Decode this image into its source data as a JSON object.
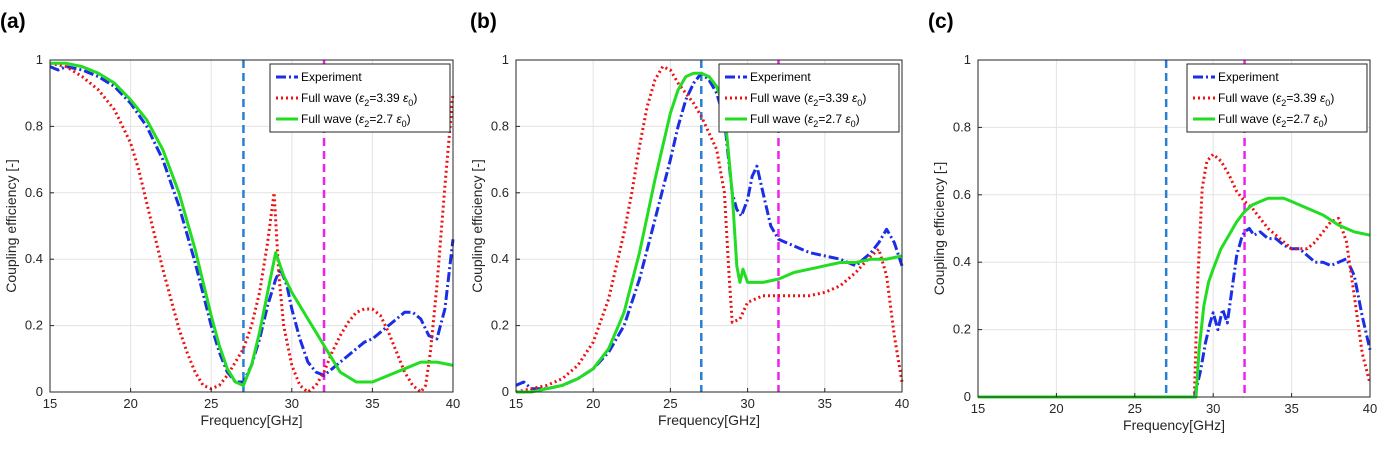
{
  "colors": {
    "experiment": "#1a2ee6",
    "full_wave_339": "#ee1111",
    "full_wave_27": "#22dd22",
    "marker_a": "#2a7fd4",
    "marker_b": "#ee22ee",
    "grid": "#e3e3e3"
  },
  "chart_data": [
    {
      "type": "line",
      "panel": "(a)",
      "xlabel": "Frequency[GHz]",
      "ylabel": "Coupling efficiency [-]",
      "xlim": [
        15,
        40
      ],
      "ylim": [
        0,
        1
      ],
      "xticks": [
        "15",
        "20",
        "25",
        "30",
        "35",
        "40"
      ],
      "yticks": [
        "0",
        "0.2",
        "0.4",
        "0.6",
        "0.8",
        "1"
      ],
      "grid": true,
      "legend_position": "top-right",
      "vlines": [
        27,
        32
      ],
      "legend": {
        "experiment": "Experiment",
        "full_wave_339": "Full wave (ε2=3.39 ε0)",
        "full_wave_27": "Full wave (ε2=2.7 ε0)"
      },
      "series": [
        {
          "name": "Experiment",
          "x": [
            15,
            15.5,
            16,
            17,
            18,
            19,
            20,
            21,
            22,
            23,
            24,
            25,
            25.5,
            26,
            26.5,
            27,
            27.5,
            28,
            28.5,
            29,
            29.3,
            29.7,
            30,
            30.5,
            31,
            31.5,
            32,
            32.5,
            33,
            33.5,
            34,
            34.5,
            35,
            35.5,
            36,
            36.5,
            37,
            37.5,
            38,
            38.5,
            39,
            39.5,
            40
          ],
          "y": [
            0.98,
            0.97,
            0.98,
            0.97,
            0.95,
            0.92,
            0.87,
            0.8,
            0.7,
            0.56,
            0.39,
            0.2,
            0.12,
            0.06,
            0.03,
            0.03,
            0.08,
            0.16,
            0.26,
            0.34,
            0.37,
            0.32,
            0.25,
            0.16,
            0.09,
            0.06,
            0.05,
            0.07,
            0.09,
            0.11,
            0.13,
            0.15,
            0.16,
            0.18,
            0.2,
            0.22,
            0.24,
            0.24,
            0.22,
            0.17,
            0.16,
            0.25,
            0.46
          ]
        },
        {
          "name": "Full wave (ε2=3.39 ε0)",
          "x": [
            15,
            16,
            17,
            18,
            19,
            20,
            20.5,
            21,
            21.5,
            22,
            22.5,
            23,
            23.5,
            24,
            24.5,
            25,
            25.5,
            26,
            26.5,
            27,
            27.5,
            28,
            28.5,
            28.9,
            29.2,
            29.5,
            30,
            30.5,
            31,
            31.5,
            32,
            32.5,
            33,
            33.5,
            34,
            34.5,
            35,
            35.5,
            36,
            36.5,
            37,
            37.5,
            38,
            38.3,
            38.6,
            39,
            39.5,
            40
          ],
          "y": [
            0.99,
            0.98,
            0.95,
            0.91,
            0.85,
            0.75,
            0.67,
            0.57,
            0.47,
            0.37,
            0.28,
            0.19,
            0.12,
            0.06,
            0.02,
            0.01,
            0.02,
            0.05,
            0.09,
            0.13,
            0.2,
            0.3,
            0.45,
            0.6,
            0.35,
            0.2,
            0.08,
            0.02,
            0.0,
            0.02,
            0.06,
            0.12,
            0.17,
            0.21,
            0.24,
            0.25,
            0.25,
            0.23,
            0.18,
            0.12,
            0.06,
            0.02,
            0.0,
            0.02,
            0.12,
            0.32,
            0.62,
            0.9
          ]
        },
        {
          "name": "Full wave (ε2=2.7 ε0)",
          "x": [
            15,
            16,
            17,
            18,
            19,
            20,
            21,
            22,
            23,
            24,
            25,
            25.5,
            26,
            26.5,
            27,
            27.5,
            28,
            28.5,
            29,
            29.5,
            30,
            30.5,
            31,
            31.5,
            32,
            32.5,
            33,
            34,
            35,
            36,
            37,
            38,
            39,
            40
          ],
          "y": [
            0.99,
            0.99,
            0.98,
            0.96,
            0.93,
            0.88,
            0.82,
            0.73,
            0.6,
            0.43,
            0.23,
            0.14,
            0.07,
            0.03,
            0.02,
            0.08,
            0.18,
            0.3,
            0.42,
            0.35,
            0.3,
            0.26,
            0.22,
            0.18,
            0.14,
            0.1,
            0.06,
            0.03,
            0.03,
            0.05,
            0.07,
            0.09,
            0.09,
            0.08
          ]
        }
      ]
    },
    {
      "type": "line",
      "panel": "(b)",
      "xlabel": "Frequency[GHz]",
      "ylabel": "Coupling efficiency [-]",
      "xlim": [
        15,
        40
      ],
      "ylim": [
        0,
        1
      ],
      "xticks": [
        "15",
        "20",
        "25",
        "30",
        "35",
        "40"
      ],
      "yticks": [
        "0",
        "0.2",
        "0.4",
        "0.6",
        "0.8",
        "1"
      ],
      "grid": true,
      "legend_position": "top-right",
      "vlines": [
        27,
        32
      ],
      "legend": {
        "experiment": "Experiment",
        "full_wave_339": "Full wave (ε2=3.39 ε0)",
        "full_wave_27": "Full wave (ε2=2.7 ε0)"
      },
      "series": [
        {
          "name": "Experiment",
          "x": [
            15,
            15.5,
            16,
            17,
            18,
            19,
            20,
            21,
            22,
            23,
            24,
            25,
            25.5,
            26,
            26.5,
            27,
            27.5,
            28,
            28.5,
            29,
            29.3,
            29.6,
            30,
            30.3,
            30.6,
            31,
            31.5,
            32,
            32.5,
            33,
            34,
            35,
            36,
            37,
            38,
            38.5,
            39,
            39.5,
            40
          ],
          "y": [
            0.02,
            0.03,
            0.01,
            0.01,
            0.02,
            0.04,
            0.07,
            0.12,
            0.2,
            0.34,
            0.52,
            0.7,
            0.8,
            0.88,
            0.93,
            0.96,
            0.94,
            0.9,
            0.82,
            0.6,
            0.55,
            0.53,
            0.58,
            0.65,
            0.68,
            0.6,
            0.5,
            0.46,
            0.45,
            0.44,
            0.42,
            0.41,
            0.4,
            0.38,
            0.42,
            0.45,
            0.49,
            0.45,
            0.38
          ]
        },
        {
          "name": "Full wave (ε2=3.39 ε0)",
          "x": [
            15,
            16,
            17,
            18,
            19,
            20,
            21,
            22,
            22.5,
            23,
            23.5,
            24,
            24.5,
            25,
            25.5,
            26,
            26.5,
            27,
            27.5,
            28,
            28.5,
            28.8,
            29,
            29.5,
            30,
            31,
            32,
            33,
            34,
            35,
            36,
            37,
            38,
            38.5,
            39,
            39.5,
            40
          ],
          "y": [
            0.0,
            0.01,
            0.02,
            0.04,
            0.08,
            0.15,
            0.28,
            0.48,
            0.6,
            0.74,
            0.86,
            0.94,
            0.98,
            0.97,
            0.93,
            0.9,
            0.87,
            0.83,
            0.78,
            0.73,
            0.6,
            0.35,
            0.21,
            0.22,
            0.27,
            0.29,
            0.29,
            0.29,
            0.29,
            0.3,
            0.32,
            0.36,
            0.41,
            0.43,
            0.35,
            0.17,
            0.03
          ]
        },
        {
          "name": "Full wave (ε2=2.7 ε0)",
          "x": [
            15,
            16,
            17,
            18,
            19,
            20,
            21,
            22,
            23,
            24,
            25,
            25.5,
            26,
            26.5,
            27,
            27.5,
            28,
            28.3,
            28.6,
            29,
            29.3,
            29.5,
            29.7,
            30,
            30.5,
            31,
            32,
            33,
            34,
            35,
            36,
            37,
            38,
            39,
            40
          ],
          "y": [
            0.0,
            0.0,
            0.01,
            0.02,
            0.04,
            0.07,
            0.13,
            0.24,
            0.42,
            0.64,
            0.84,
            0.91,
            0.95,
            0.96,
            0.96,
            0.95,
            0.92,
            0.88,
            0.8,
            0.6,
            0.38,
            0.33,
            0.37,
            0.33,
            0.33,
            0.33,
            0.34,
            0.36,
            0.37,
            0.38,
            0.39,
            0.39,
            0.4,
            0.4,
            0.41
          ]
        }
      ]
    },
    {
      "type": "line",
      "panel": "(c)",
      "xlabel": "Frequency[GHz]",
      "ylabel": "Coupling efficiency [-]",
      "xlim": [
        15,
        40
      ],
      "ylim": [
        0,
        1
      ],
      "xticks": [
        "15",
        "20",
        "25",
        "30",
        "35",
        "40"
      ],
      "yticks": [
        "0",
        "0.2",
        "0.4",
        "0.6",
        "0.8",
        "1"
      ],
      "grid": true,
      "legend_position": "top-right",
      "vlines": [
        27,
        32
      ],
      "legend": {
        "experiment": "Experiment",
        "full_wave_339": "Full wave (ε2=3.39 ε0)",
        "full_wave_27": "Full wave (ε2=2.7 ε0)"
      },
      "series": [
        {
          "name": "Experiment",
          "x": [
            15,
            20,
            25,
            28.8,
            29.2,
            29.5,
            29.8,
            30,
            30.3,
            30.6,
            30.9,
            31.2,
            31.5,
            31.8,
            32,
            32.3,
            32.6,
            33,
            33.5,
            34,
            34.5,
            35,
            35.5,
            36,
            36.5,
            37,
            37.5,
            38,
            38.5,
            39,
            39.5,
            40
          ],
          "y": [
            0.0,
            0.0,
            0.0,
            0.0,
            0.08,
            0.16,
            0.22,
            0.25,
            0.2,
            0.26,
            0.22,
            0.32,
            0.42,
            0.47,
            0.49,
            0.5,
            0.48,
            0.49,
            0.47,
            0.47,
            0.45,
            0.44,
            0.44,
            0.42,
            0.4,
            0.4,
            0.39,
            0.4,
            0.41,
            0.36,
            0.24,
            0.14
          ]
        },
        {
          "name": "Full wave (ε2=3.39 ε0)",
          "x": [
            15,
            20,
            25,
            28.8,
            29,
            29.3,
            29.6,
            30,
            30.5,
            31,
            31.5,
            32,
            32.5,
            33,
            33.5,
            34,
            34.5,
            35,
            35.5,
            36,
            36.5,
            37,
            37.5,
            38,
            38.5,
            39,
            39.5,
            40
          ],
          "y": [
            0.0,
            0.0,
            0.0,
            0.0,
            0.33,
            0.62,
            0.7,
            0.72,
            0.7,
            0.66,
            0.61,
            0.58,
            0.56,
            0.53,
            0.5,
            0.48,
            0.46,
            0.44,
            0.44,
            0.44,
            0.46,
            0.49,
            0.52,
            0.53,
            0.46,
            0.3,
            0.13,
            0.04
          ]
        },
        {
          "name": "Full wave (ε2=2.7 ε0)",
          "x": [
            15,
            20,
            25,
            28.9,
            29.1,
            29.4,
            29.7,
            30,
            30.5,
            31,
            31.5,
            32,
            32.5,
            33,
            33.5,
            34,
            34.5,
            35,
            35.5,
            36,
            37,
            38,
            39,
            40
          ],
          "y": [
            0.0,
            0.0,
            0.0,
            0.0,
            0.14,
            0.27,
            0.34,
            0.38,
            0.44,
            0.48,
            0.52,
            0.55,
            0.57,
            0.58,
            0.59,
            0.59,
            0.59,
            0.58,
            0.57,
            0.56,
            0.54,
            0.51,
            0.49,
            0.48
          ]
        }
      ]
    }
  ]
}
